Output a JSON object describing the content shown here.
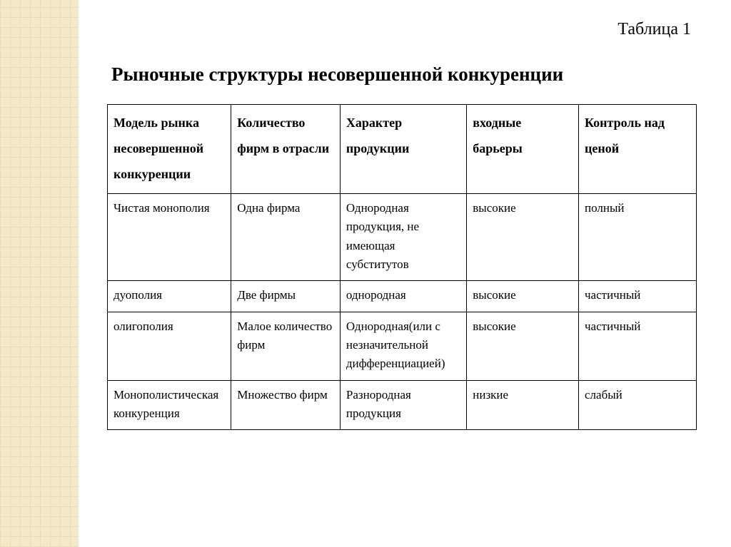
{
  "caption": "Таблица 1",
  "title": "Рыночные структуры несовершенной конкуренции",
  "table": {
    "headers": [
      "Модель рынка несовершенной конкуренции",
      "Количество фирм в отрасли",
      "Характер продукции",
      "входные барьеры",
      "Контроль над ценой"
    ],
    "rows": [
      [
        "Чистая монополия",
        "Одна фирма",
        "Однородная продукция, не имеющая субститутов",
        "высокие",
        "полный"
      ],
      [
        "дуополия",
        "Две фирмы",
        "однородная",
        "высокие",
        "частичный"
      ],
      [
        "олигополия",
        "Малое количество фирм",
        "Однородная(или с незначительной дифференциацией)",
        "высокие",
        "частичный"
      ],
      [
        "Монополистическая конкуренция",
        "Множество фирм",
        "Разнородная продукция",
        "низкие",
        "слабый"
      ]
    ]
  }
}
